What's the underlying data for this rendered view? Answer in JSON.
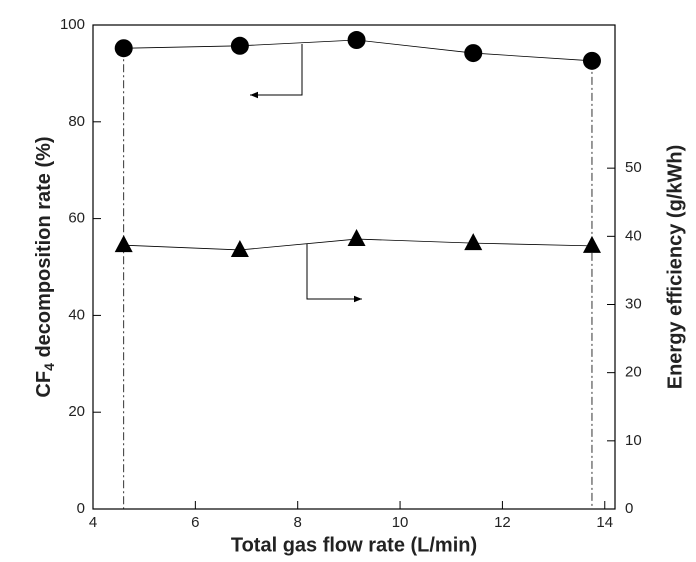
{
  "chart_data": {
    "type": "scatter",
    "xlabel": "Total gas flow rate (L/min)",
    "ylabel": [
      "CF",
      "4",
      " decomposition rate (%)"
    ],
    "y2label": "Energy efficiency (g/kWh)",
    "xlim": [
      4,
      14.2
    ],
    "xticks": [
      4,
      6,
      8,
      10,
      12,
      14
    ],
    "ylim": [
      0,
      100
    ],
    "yticks": [
      0,
      20,
      40,
      60,
      80,
      100
    ],
    "y2lim": [
      0,
      71
    ],
    "y2ticks": [
      0,
      10,
      20,
      30,
      40,
      50
    ],
    "series": [
      {
        "marker": "circle",
        "color": "#000000",
        "x": [
          4.6,
          6.87,
          9.15,
          11.43,
          13.75
        ],
        "values": [
          95.2,
          95.7,
          96.9,
          94.2,
          92.6
        ]
      },
      {
        "marker": "triangle",
        "axis": "y2",
        "color": "#000000",
        "x": [
          4.6,
          6.87,
          9.15,
          11.43,
          13.75
        ],
        "values": [
          38.7,
          38.0,
          39.6,
          39.0,
          38.6
        ]
      }
    ]
  }
}
